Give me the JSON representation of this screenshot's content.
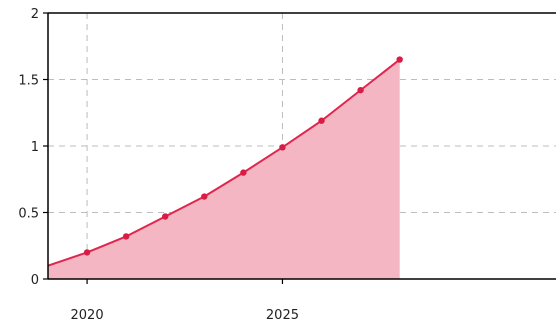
{
  "chart_data": {
    "type": "area",
    "x": [
      2019,
      2020,
      2021,
      2022,
      2023,
      2024,
      2025,
      2026,
      2027,
      2028
    ],
    "series": [
      {
        "values": [
          0.1,
          0.2,
          0.32,
          0.47,
          0.62,
          0.8,
          0.99,
          1.19,
          1.42,
          1.65
        ]
      }
    ],
    "xlim": [
      2019,
      2032
    ],
    "ylim": [
      0,
      2
    ],
    "x_ticks": [
      2020,
      2025
    ],
    "x_tick_labels": [
      "2020",
      "2025"
    ],
    "y_ticks": [
      0,
      0.5,
      1,
      1.5,
      2
    ],
    "y_tick_labels": [
      "0",
      "0.5",
      "1",
      "1.5",
      "2"
    ],
    "title": "",
    "xlabel": "",
    "ylabel": "",
    "grid": true,
    "grid_style": "dashed",
    "colors": {
      "line": "#e0264f",
      "fill": "#f4b6c2",
      "marker": "#d81d45",
      "grid": "#bdbdbd",
      "axis": "#000000"
    }
  }
}
